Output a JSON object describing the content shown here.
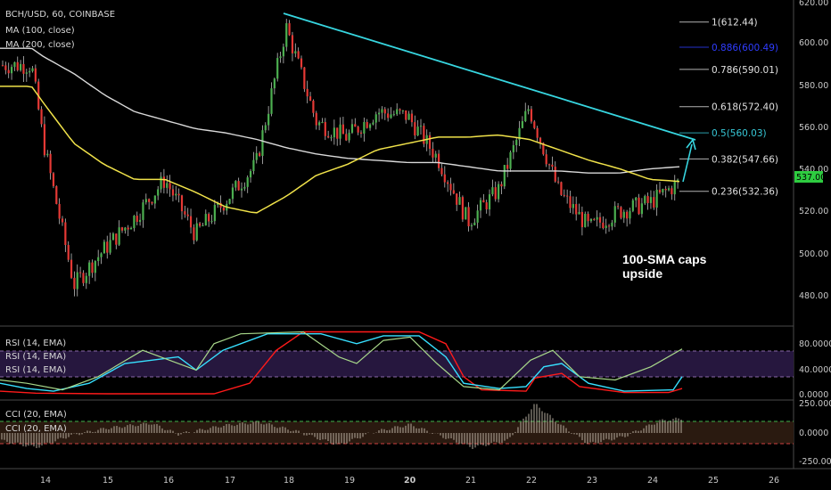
{
  "header": {
    "symbol_line": "BCH/USD, 60, COINBASE",
    "ma100_label": "MA (100, close)",
    "ma200_label": "MA (200, close)"
  },
  "price_axis": {
    "ticks": [
      "620.00",
      "600.00",
      "580.00",
      "560.00",
      "540.00",
      "520.00",
      "500.00",
      "480.00"
    ],
    "last_price": "537.00"
  },
  "fib_levels": [
    {
      "label": "1(612.44)",
      "value": 612.44,
      "color": "#e0e0e0"
    },
    {
      "label": "0.886(600.49)",
      "value": 600.49,
      "color": "#2f3dff"
    },
    {
      "label": "0.786(590.01)",
      "value": 590.01,
      "color": "#e0e0e0"
    },
    {
      "label": "0.618(572.40)",
      "value": 572.4,
      "color": "#e0e0e0"
    },
    {
      "label": "0.5(560.03)",
      "value": 560.03,
      "color": "#37c7d6"
    },
    {
      "label": "0.382(547.66)",
      "value": 547.66,
      "color": "#e0e0e0"
    },
    {
      "label": "0.236(532.36)",
      "value": 532.36,
      "color": "#e0e0e0"
    }
  ],
  "annotation": {
    "line1": "100-SMA caps",
    "line2": "upside"
  },
  "rsi": {
    "labels": [
      "RSI (14, EMA)",
      "RSI (14, EMA)",
      "RSI (14, EMA)"
    ],
    "ticks": [
      "80.0000",
      "40.0000",
      "0.0000"
    ]
  },
  "cci": {
    "labels": [
      "CCI (20, EMA)",
      "CCI (20, EMA)"
    ],
    "ticks": [
      "250.0000",
      "0.0000",
      "-250.0000"
    ]
  },
  "x_axis": {
    "ticks": [
      "14",
      "15",
      "16",
      "17",
      "18",
      "19",
      "20",
      "21",
      "22",
      "23",
      "24",
      "25",
      "26"
    ]
  },
  "colors": {
    "background": "#000000",
    "bull": "#4caf50",
    "bear": "#e53935",
    "ma100": "#f0e24a",
    "ma200": "#d9d9d9",
    "trendline": "#37d6e0",
    "arrow": "#37d6e0",
    "rsi_red": "#ff1a1a",
    "rsi_cyan": "#37e0ff",
    "rsi_green": "#a8d88a",
    "rsi_band": "#26173e",
    "last_price_bg": "#2ecc40"
  },
  "chart_data": {
    "type": "line",
    "title": "BCH/USD, 60, COINBASE",
    "ylim": [
      472,
      622
    ],
    "x": [
      "13.8",
      "14",
      "14.5",
      "15",
      "15.5",
      "16",
      "16.5",
      "17",
      "17.5",
      "18",
      "18.5",
      "19",
      "19.5",
      "20",
      "20.5",
      "21",
      "21.5",
      "22",
      "22.5",
      "23",
      "23.5",
      "24",
      "24.5"
    ],
    "series": [
      {
        "name": "BCH/USD close",
        "values": [
          592,
          555,
          488,
          505,
          520,
          538,
          512,
          528,
          545,
          610,
          565,
          558,
          570,
          568,
          548,
          518,
          533,
          572,
          532,
          515,
          523,
          527,
          537
        ]
      },
      {
        "name": "MA (100, close)",
        "values": [
          582,
          574,
          555,
          545,
          538,
          538,
          532,
          525,
          522,
          530,
          540,
          545,
          552,
          555,
          558,
          558,
          559,
          557,
          552,
          547,
          543,
          538,
          537
        ]
      },
      {
        "name": "MA (200, close)",
        "values": [
          600,
          596,
          588,
          578,
          570,
          566,
          562,
          560,
          557,
          553,
          550,
          548,
          547,
          546,
          546,
          544,
          542,
          542,
          542,
          541,
          541,
          543,
          544
        ]
      }
    ]
  }
}
